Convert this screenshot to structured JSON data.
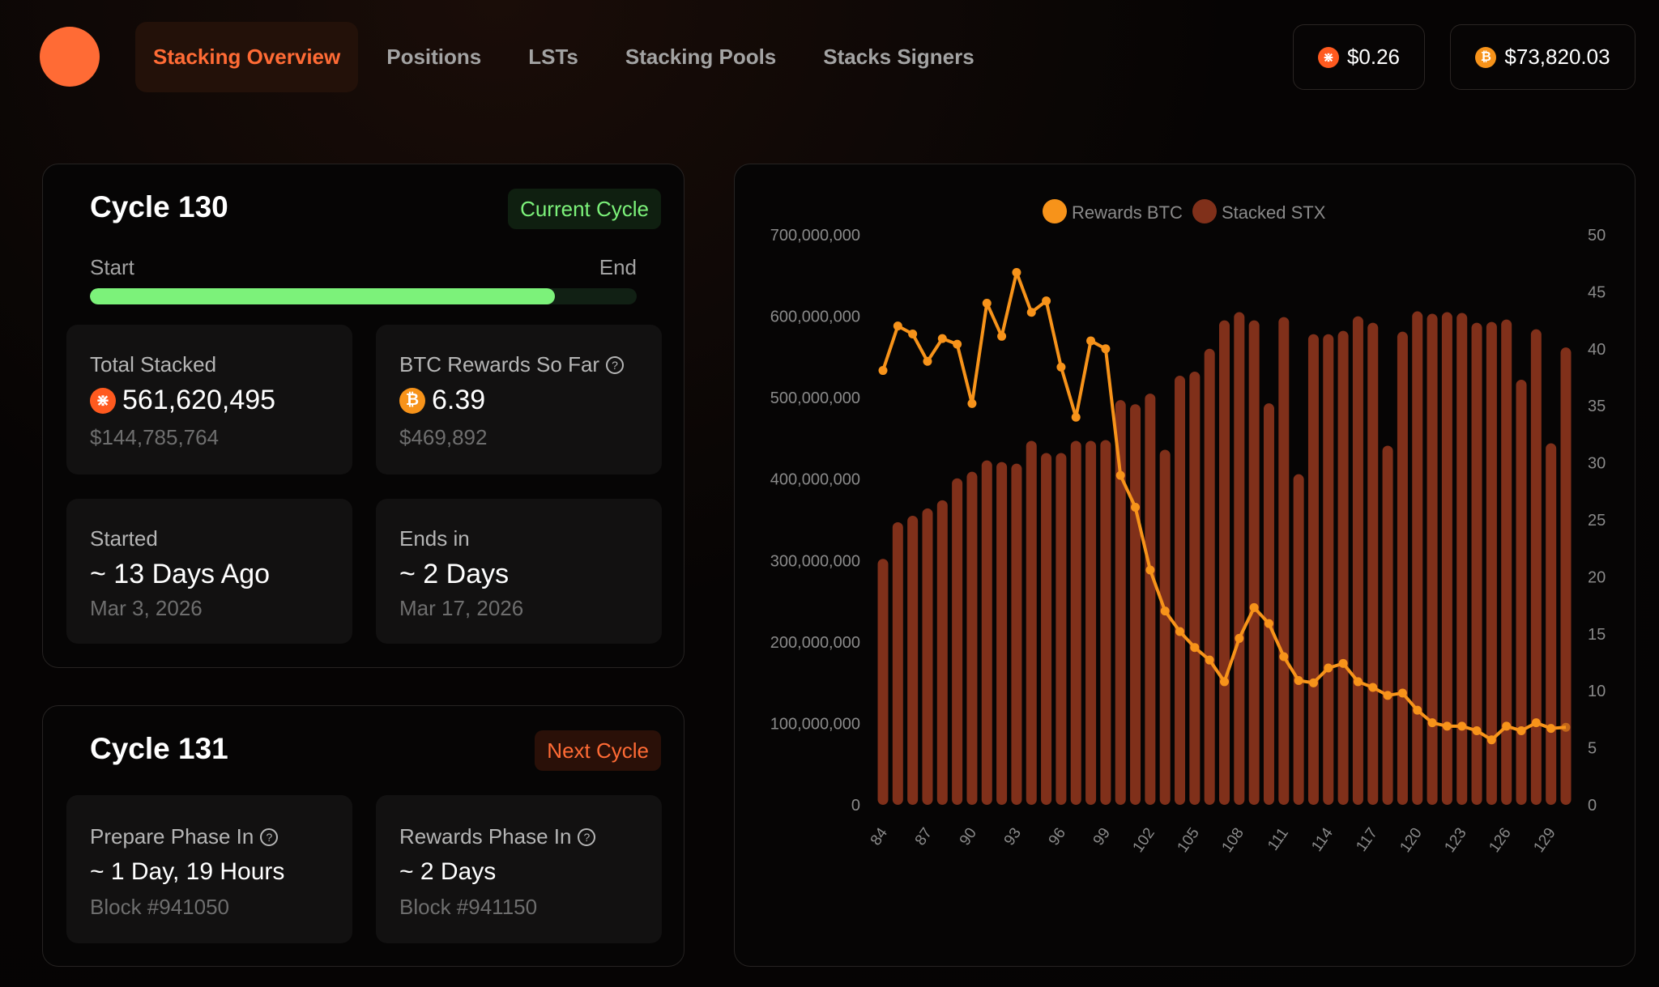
{
  "nav": {
    "items": [
      {
        "label": "Stacking Overview",
        "active": true
      },
      {
        "label": "Positions"
      },
      {
        "label": "LSTs"
      },
      {
        "label": "Stacking Pools"
      },
      {
        "label": "Stacks Signers"
      }
    ]
  },
  "prices": {
    "stx": "$0.26",
    "btc": "$73,820.03"
  },
  "icons": {
    "stx": "stx-coin-icon",
    "btc": "btc-coin-icon",
    "help": "question-circle-icon"
  },
  "current_cycle": {
    "title": "Cycle 130",
    "badge": "Current Cycle",
    "start_label": "Start",
    "end_label": "End",
    "progress_percent": 85,
    "total_stacked": {
      "label": "Total Stacked",
      "value": "561,620,495",
      "usd": "$144,785,764"
    },
    "btc_rewards": {
      "label": "BTC Rewards So Far",
      "value": "6.39",
      "usd": "$469,892"
    },
    "started": {
      "label": "Started",
      "value": "~ 13 Days Ago",
      "date": "Mar 3, 2026"
    },
    "ends": {
      "label": "Ends in",
      "value": "~ 2 Days",
      "date": "Mar 17, 2026"
    }
  },
  "next_cycle": {
    "title": "Cycle 131",
    "badge": "Next Cycle",
    "prepare": {
      "label": "Prepare Phase In",
      "value": "~ 1 Day, 19 Hours",
      "block": "Block #941050"
    },
    "rewards": {
      "label": "Rewards Phase In",
      "value": "~ 2 Days",
      "block": "Block #941150"
    }
  },
  "colors": {
    "accent": "#ff6b35",
    "green": "#7cf27a",
    "btc_line": "#f7931a",
    "stx_bar": "#80301a"
  },
  "chart_data": {
    "type": "bar+line",
    "legend_position": "top-center",
    "grid": false,
    "series": [
      {
        "name": "Rewards BTC",
        "type": "line",
        "axis": "right",
        "color": "#f7931a",
        "values": [
          38.1,
          42.0,
          41.3,
          38.9,
          40.9,
          40.4,
          35.2,
          44.0,
          41.1,
          46.7,
          43.2,
          44.2,
          38.4,
          34.0,
          40.7,
          40.0,
          28.9,
          26.1,
          20.6,
          17.0,
          15.2,
          13.8,
          12.7,
          10.8,
          14.6,
          17.3,
          15.9,
          13.0,
          10.9,
          10.7,
          12.0,
          12.4,
          10.8,
          10.3,
          9.6,
          9.8,
          8.3,
          7.2,
          6.9,
          6.9,
          6.5,
          5.7,
          6.9,
          6.5,
          7.2,
          6.7,
          6.8
        ]
      },
      {
        "name": "Stacked STX",
        "type": "bar",
        "axis": "left",
        "color": "#80301a",
        "values": [
          302000000,
          347000000,
          355000000,
          364000000,
          374000000,
          401000000,
          409000000,
          423000000,
          421000000,
          419000000,
          447000000,
          432000000,
          432000000,
          447000000,
          447000000,
          448000000,
          497000000,
          492000000,
          505000000,
          436000000,
          527000000,
          532000000,
          560000000,
          595000000,
          605000000,
          595000000,
          493000000,
          599000000,
          406000000,
          578000000,
          578000000,
          582000000,
          600000000,
          592000000,
          441000000,
          581000000,
          606000000,
          603000000,
          605000000,
          604000000,
          592000000,
          593000000,
          596000000,
          522000000,
          584000000,
          444000000,
          561620495
        ]
      }
    ],
    "x_start": 84,
    "x_end": 130,
    "x_tick_labels": [
      "84",
      "87",
      "90",
      "93",
      "96",
      "99",
      "102",
      "105",
      "108",
      "111",
      "114",
      "117",
      "120",
      "123",
      "126",
      "129"
    ],
    "y_left_range": [
      0,
      700000000
    ],
    "y_left_tick_labels": [
      "0",
      "100,000,000",
      "200,000,000",
      "300,000,000",
      "400,000,000",
      "500,000,000",
      "600,000,000",
      "700,000,000"
    ],
    "y_right_range": [
      0,
      50
    ],
    "y_right_tick_labels": [
      "0",
      "5",
      "10",
      "15",
      "20",
      "25",
      "30",
      "35",
      "40",
      "45",
      "50"
    ]
  }
}
